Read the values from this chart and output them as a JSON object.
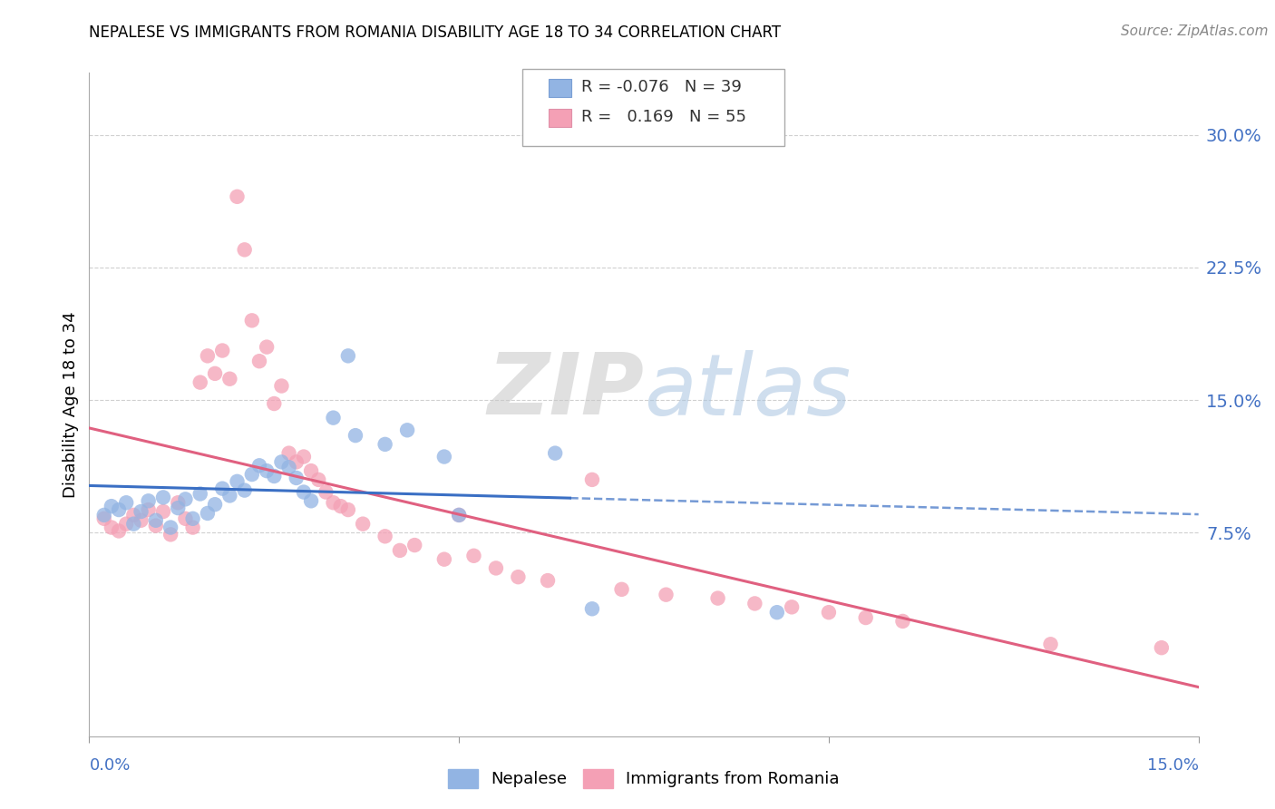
{
  "title": "NEPALESE VS IMMIGRANTS FROM ROMANIA DISABILITY AGE 18 TO 34 CORRELATION CHART",
  "source": "Source: ZipAtlas.com",
  "ylabel": "Disability Age 18 to 34",
  "ytick_labels": [
    "7.5%",
    "15.0%",
    "22.5%",
    "30.0%"
  ],
  "ytick_values": [
    0.075,
    0.15,
    0.225,
    0.3
  ],
  "xlim": [
    0.0,
    0.15
  ],
  "ylim": [
    -0.04,
    0.335
  ],
  "legend_r_nepalese": "-0.076",
  "legend_n_nepalese": "39",
  "legend_r_romania": "0.169",
  "legend_n_romania": "55",
  "color_nepalese": "#92b4e3",
  "color_romania": "#f4a0b5",
  "line_color_nepalese": "#3a6fc4",
  "line_color_romania": "#e06080",
  "watermark_zip": "ZIP",
  "watermark_atlas": "atlas",
  "grid_color": "#d0d0d0",
  "nepalese_x": [
    0.002,
    0.003,
    0.004,
    0.005,
    0.006,
    0.007,
    0.008,
    0.009,
    0.01,
    0.011,
    0.012,
    0.013,
    0.014,
    0.015,
    0.016,
    0.017,
    0.018,
    0.019,
    0.02,
    0.021,
    0.022,
    0.023,
    0.024,
    0.025,
    0.026,
    0.027,
    0.028,
    0.029,
    0.03,
    0.033,
    0.035,
    0.036,
    0.04,
    0.043,
    0.048,
    0.05,
    0.063,
    0.068,
    0.093
  ],
  "nepalese_y": [
    0.085,
    0.09,
    0.088,
    0.092,
    0.08,
    0.087,
    0.093,
    0.082,
    0.095,
    0.078,
    0.089,
    0.094,
    0.083,
    0.097,
    0.086,
    0.091,
    0.1,
    0.096,
    0.104,
    0.099,
    0.108,
    0.113,
    0.11,
    0.107,
    0.115,
    0.112,
    0.106,
    0.098,
    0.093,
    0.14,
    0.175,
    0.13,
    0.125,
    0.133,
    0.118,
    0.085,
    0.12,
    0.032,
    0.03
  ],
  "romania_x": [
    0.002,
    0.003,
    0.004,
    0.005,
    0.006,
    0.007,
    0.008,
    0.009,
    0.01,
    0.011,
    0.012,
    0.013,
    0.014,
    0.015,
    0.016,
    0.017,
    0.018,
    0.019,
    0.02,
    0.021,
    0.022,
    0.023,
    0.024,
    0.025,
    0.026,
    0.027,
    0.028,
    0.029,
    0.03,
    0.031,
    0.032,
    0.033,
    0.034,
    0.035,
    0.037,
    0.04,
    0.042,
    0.044,
    0.048,
    0.05,
    0.052,
    0.055,
    0.058,
    0.062,
    0.068,
    0.072,
    0.078,
    0.085,
    0.09,
    0.095,
    0.1,
    0.105,
    0.11,
    0.13,
    0.145
  ],
  "romania_y": [
    0.083,
    0.078,
    0.076,
    0.08,
    0.085,
    0.082,
    0.088,
    0.079,
    0.087,
    0.074,
    0.092,
    0.083,
    0.078,
    0.16,
    0.175,
    0.165,
    0.178,
    0.162,
    0.265,
    0.235,
    0.195,
    0.172,
    0.18,
    0.148,
    0.158,
    0.12,
    0.115,
    0.118,
    0.11,
    0.105,
    0.098,
    0.092,
    0.09,
    0.088,
    0.08,
    0.073,
    0.065,
    0.068,
    0.06,
    0.085,
    0.062,
    0.055,
    0.05,
    0.048,
    0.105,
    0.043,
    0.04,
    0.038,
    0.035,
    0.033,
    0.03,
    0.027,
    0.025,
    0.012,
    0.01
  ]
}
